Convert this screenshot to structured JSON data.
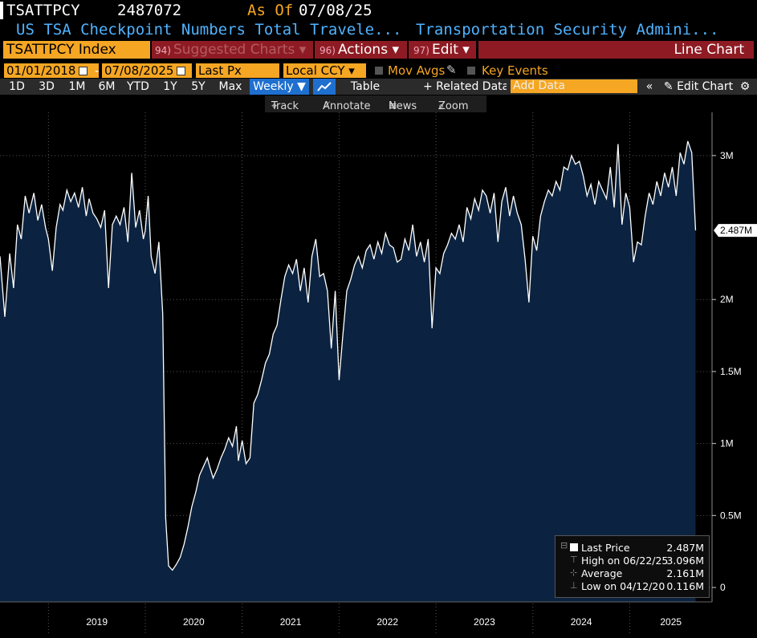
{
  "header": {
    "ticker": "TSATTPCY",
    "last_value": "2487072",
    "as_of_label": "As Of",
    "as_of_date": "07/08/25",
    "description": "US TSA Checkpoint Numbers Total Travele...",
    "source": "Transportation Security Admini..."
  },
  "toolbar": {
    "security": "TSATTPCY Index",
    "suggested_num": "94)",
    "suggested": "Suggested Charts",
    "actions_num": "96)",
    "actions": "Actions",
    "edit_num": "97)",
    "edit": "Edit",
    "chart_type": "Line Chart"
  },
  "controls": {
    "start_date": "01/01/2018",
    "dash": "-",
    "end_date": "07/08/2025",
    "field": "Last Px",
    "currency": "Local CCY",
    "mov_avgs": "Mov Avgs",
    "key_events": "Key Events"
  },
  "ranges": [
    "1D",
    "3D",
    "1M",
    "6M",
    "YTD",
    "1Y",
    "5Y",
    "Max"
  ],
  "periodicity": "Weekly",
  "table_label": "Table",
  "related_data": "+ Related Data",
  "add_data_placeholder": "Add Data",
  "edit_chart": "Edit Chart",
  "chart_tools": [
    "Track",
    "Annotate",
    "News",
    "Zoom"
  ],
  "colors": {
    "area": "#0b2340",
    "line": "#ffffff",
    "accent": "#f5a623",
    "maroon": "#8e1b23",
    "selected": "#1f6fcf"
  },
  "legend": {
    "last_price_label": "Last Price",
    "last_price_value": "2.487M",
    "high_label": "High on 06/22/25",
    "high_value": "3.096M",
    "average_label": "Average",
    "average_value": "2.161M",
    "low_label": "Low on 04/12/20",
    "low_value": "0.116M"
  },
  "chart_data": {
    "type": "area",
    "x_unit": "weekly, years",
    "y_unit": "travelers",
    "ylim": [
      -100000,
      3300000
    ],
    "xlim": [
      2018.5,
      2025.85
    ],
    "y_ticks": [
      {
        "v": 0,
        "label": "0"
      },
      {
        "v": 500000,
        "label": "0.5M"
      },
      {
        "v": 1000000,
        "label": "1M"
      },
      {
        "v": 1500000,
        "label": "1.5M"
      },
      {
        "v": 2000000,
        "label": "2M"
      },
      {
        "v": 3000000,
        "label": "3M"
      }
    ],
    "x_labels": [
      "2019",
      "2020",
      "2021",
      "2022",
      "2023",
      "2024",
      "2025"
    ],
    "last_value_label": "2.487M",
    "grid": true,
    "series": [
      {
        "points": [
          [
            2018.5,
            2.3
          ],
          [
            2018.55,
            1.88
          ],
          [
            2018.6,
            2.32
          ],
          [
            2018.64,
            2.08
          ],
          [
            2018.68,
            2.52
          ],
          [
            2018.72,
            2.42
          ],
          [
            2018.76,
            2.72
          ],
          [
            2018.8,
            2.6
          ],
          [
            2018.85,
            2.74
          ],
          [
            2018.89,
            2.55
          ],
          [
            2018.93,
            2.66
          ],
          [
            2018.97,
            2.5
          ],
          [
            2019.0,
            2.42
          ],
          [
            2019.04,
            2.2
          ],
          [
            2019.08,
            2.5
          ],
          [
            2019.12,
            2.66
          ],
          [
            2019.15,
            2.62
          ],
          [
            2019.19,
            2.76
          ],
          [
            2019.23,
            2.68
          ],
          [
            2019.27,
            2.74
          ],
          [
            2019.31,
            2.64
          ],
          [
            2019.35,
            2.78
          ],
          [
            2019.39,
            2.58
          ],
          [
            2019.42,
            2.7
          ],
          [
            2019.46,
            2.6
          ],
          [
            2019.5,
            2.56
          ],
          [
            2019.54,
            2.5
          ],
          [
            2019.58,
            2.62
          ],
          [
            2019.62,
            2.08
          ],
          [
            2019.66,
            2.52
          ],
          [
            2019.7,
            2.58
          ],
          [
            2019.74,
            2.52
          ],
          [
            2019.78,
            2.64
          ],
          [
            2019.82,
            2.4
          ],
          [
            2019.86,
            2.88
          ],
          [
            2019.9,
            2.5
          ],
          [
            2019.94,
            2.62
          ],
          [
            2019.98,
            2.42
          ],
          [
            2020.0,
            2.48
          ],
          [
            2020.03,
            2.72
          ],
          [
            2020.06,
            2.3
          ],
          [
            2020.1,
            2.18
          ],
          [
            2020.14,
            2.4
          ],
          [
            2020.18,
            1.9
          ],
          [
            2020.21,
            0.48
          ],
          [
            2020.24,
            0.15
          ],
          [
            2020.28,
            0.12
          ],
          [
            2020.32,
            0.16
          ],
          [
            2020.36,
            0.21
          ],
          [
            2020.4,
            0.3
          ],
          [
            2020.44,
            0.42
          ],
          [
            2020.48,
            0.56
          ],
          [
            2020.52,
            0.66
          ],
          [
            2020.56,
            0.78
          ],
          [
            2020.6,
            0.84
          ],
          [
            2020.64,
            0.9
          ],
          [
            2020.66,
            0.85
          ],
          [
            2020.7,
            0.76
          ],
          [
            2020.74,
            0.82
          ],
          [
            2020.78,
            0.9
          ],
          [
            2020.82,
            0.96
          ],
          [
            2020.86,
            1.04
          ],
          [
            2020.9,
            0.98
          ],
          [
            2020.94,
            1.12
          ],
          [
            2020.96,
            0.88
          ],
          [
            2021.0,
            1.02
          ],
          [
            2021.04,
            0.86
          ],
          [
            2021.08,
            0.9
          ],
          [
            2021.12,
            1.28
          ],
          [
            2021.16,
            1.34
          ],
          [
            2021.2,
            1.44
          ],
          [
            2021.24,
            1.56
          ],
          [
            2021.28,
            1.62
          ],
          [
            2021.32,
            1.76
          ],
          [
            2021.36,
            1.82
          ],
          [
            2021.4,
            2.0
          ],
          [
            2021.44,
            2.16
          ],
          [
            2021.48,
            2.24
          ],
          [
            2021.52,
            2.18
          ],
          [
            2021.56,
            2.28
          ],
          [
            2021.6,
            2.06
          ],
          [
            2021.64,
            2.22
          ],
          [
            2021.68,
            1.98
          ],
          [
            2021.72,
            2.3
          ],
          [
            2021.76,
            2.42
          ],
          [
            2021.8,
            2.16
          ],
          [
            2021.84,
            2.18
          ],
          [
            2021.88,
            2.06
          ],
          [
            2021.92,
            1.66
          ],
          [
            2021.96,
            2.06
          ],
          [
            2022.0,
            1.44
          ],
          [
            2022.04,
            1.76
          ],
          [
            2022.08,
            2.06
          ],
          [
            2022.12,
            2.14
          ],
          [
            2022.16,
            2.24
          ],
          [
            2022.2,
            2.3
          ],
          [
            2022.24,
            2.22
          ],
          [
            2022.28,
            2.34
          ],
          [
            2022.32,
            2.38
          ],
          [
            2022.36,
            2.28
          ],
          [
            2022.4,
            2.4
          ],
          [
            2022.44,
            2.32
          ],
          [
            2022.48,
            2.46
          ],
          [
            2022.52,
            2.38
          ],
          [
            2022.56,
            2.36
          ],
          [
            2022.6,
            2.26
          ],
          [
            2022.64,
            2.28
          ],
          [
            2022.68,
            2.42
          ],
          [
            2022.72,
            2.34
          ],
          [
            2022.76,
            2.52
          ],
          [
            2022.8,
            2.3
          ],
          [
            2022.84,
            2.4
          ],
          [
            2022.88,
            2.26
          ],
          [
            2022.92,
            2.42
          ],
          [
            2022.96,
            1.8
          ],
          [
            2023.0,
            2.22
          ],
          [
            2023.04,
            2.18
          ],
          [
            2023.08,
            2.32
          ],
          [
            2023.12,
            2.38
          ],
          [
            2023.16,
            2.46
          ],
          [
            2023.2,
            2.42
          ],
          [
            2023.24,
            2.52
          ],
          [
            2023.28,
            2.4
          ],
          [
            2023.32,
            2.64
          ],
          [
            2023.36,
            2.56
          ],
          [
            2023.4,
            2.7
          ],
          [
            2023.44,
            2.62
          ],
          [
            2023.48,
            2.76
          ],
          [
            2023.52,
            2.72
          ],
          [
            2023.56,
            2.6
          ],
          [
            2023.6,
            2.74
          ],
          [
            2023.64,
            2.4
          ],
          [
            2023.68,
            2.68
          ],
          [
            2023.72,
            2.78
          ],
          [
            2023.76,
            2.58
          ],
          [
            2023.8,
            2.72
          ],
          [
            2023.84,
            2.6
          ],
          [
            2023.88,
            2.52
          ],
          [
            2023.92,
            2.28
          ],
          [
            2023.96,
            1.98
          ],
          [
            2024.0,
            2.44
          ],
          [
            2024.04,
            2.34
          ],
          [
            2024.08,
            2.58
          ],
          [
            2024.12,
            2.68
          ],
          [
            2024.16,
            2.76
          ],
          [
            2024.2,
            2.72
          ],
          [
            2024.24,
            2.82
          ],
          [
            2024.28,
            2.76
          ],
          [
            2024.32,
            2.92
          ],
          [
            2024.36,
            2.9
          ],
          [
            2024.4,
            3.0
          ],
          [
            2024.44,
            2.94
          ],
          [
            2024.48,
            2.96
          ],
          [
            2024.52,
            2.86
          ],
          [
            2024.56,
            2.72
          ],
          [
            2024.6,
            2.8
          ],
          [
            2024.64,
            2.66
          ],
          [
            2024.68,
            2.82
          ],
          [
            2024.72,
            2.76
          ],
          [
            2024.76,
            2.7
          ],
          [
            2024.8,
            2.92
          ],
          [
            2024.84,
            2.64
          ],
          [
            2024.88,
            3.08
          ],
          [
            2024.92,
            2.52
          ],
          [
            2024.96,
            2.74
          ],
          [
            2025.0,
            2.64
          ],
          [
            2025.04,
            2.26
          ],
          [
            2025.08,
            2.4
          ],
          [
            2025.12,
            2.38
          ],
          [
            2025.16,
            2.58
          ],
          [
            2025.2,
            2.74
          ],
          [
            2025.24,
            2.66
          ],
          [
            2025.28,
            2.82
          ],
          [
            2025.32,
            2.72
          ],
          [
            2025.36,
            2.88
          ],
          [
            2025.4,
            2.78
          ],
          [
            2025.44,
            2.92
          ],
          [
            2025.48,
            2.72
          ],
          [
            2025.52,
            3.02
          ],
          [
            2025.56,
            2.94
          ],
          [
            2025.6,
            3.1
          ],
          [
            2025.64,
            3.02
          ],
          [
            2025.68,
            2.48
          ]
        ]
      }
    ]
  }
}
